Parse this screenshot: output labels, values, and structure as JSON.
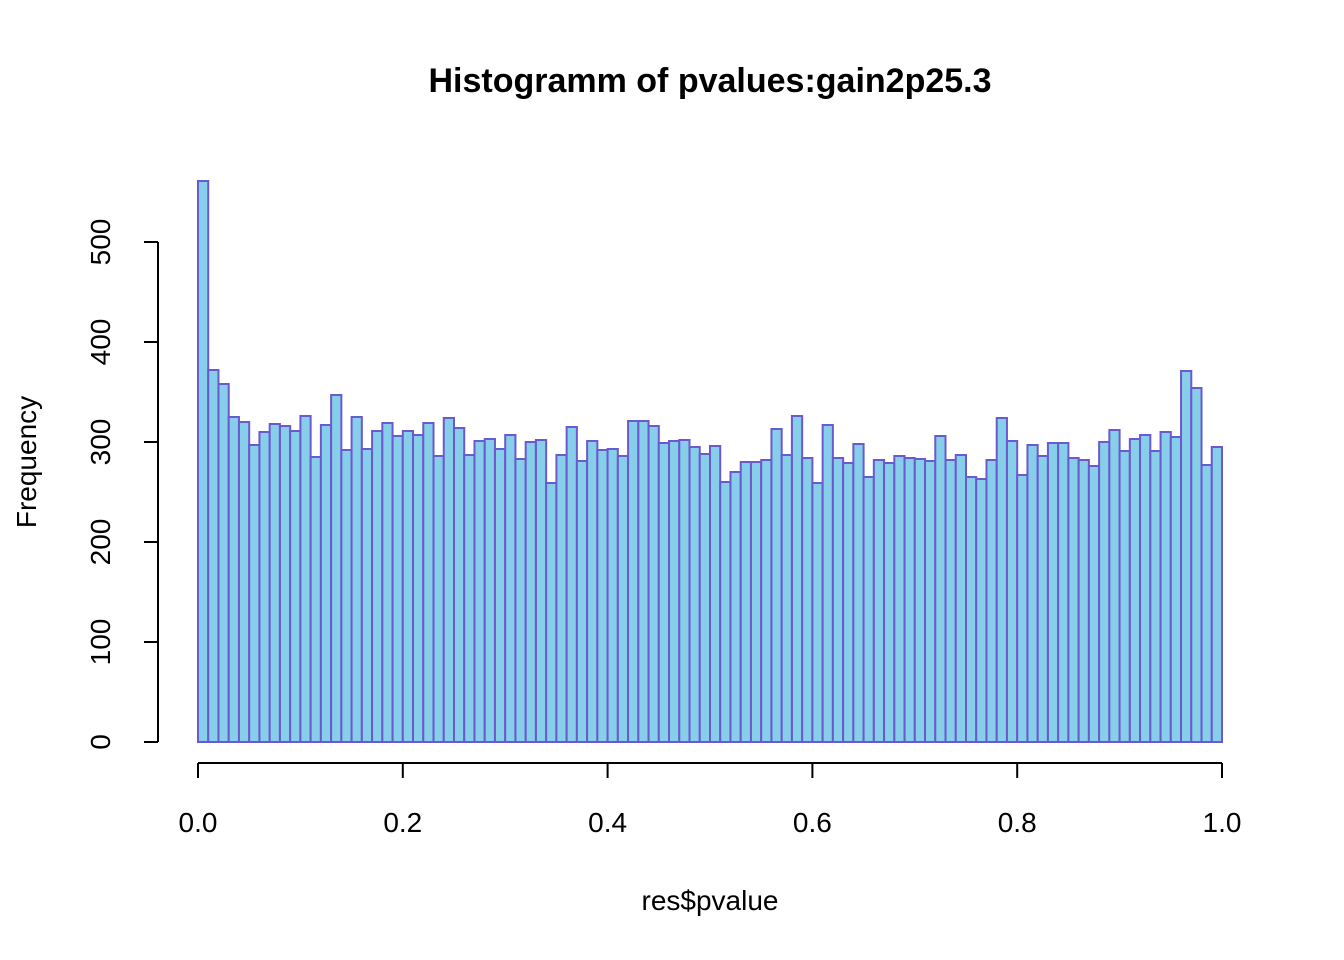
{
  "chart_data": {
    "type": "bar",
    "title": "Histogramm of pvalues:gain2p25.3",
    "xlabel": "res$pvalue",
    "ylabel": "Frequency",
    "xlim": [
      0,
      1
    ],
    "ylim": [
      0,
      560
    ],
    "bin_width": 0.01,
    "x_ticks": [
      0,
      0.2,
      0.4,
      0.6,
      0.8,
      1
    ],
    "x_tick_labels": [
      "0.0",
      "0.2",
      "0.4",
      "0.6",
      "0.8",
      "1.0"
    ],
    "y_ticks": [
      0,
      100,
      200,
      300,
      400,
      500
    ],
    "y_tick_labels": [
      "0",
      "100",
      "200",
      "300",
      "400",
      "500"
    ],
    "grid": false,
    "colors": {
      "fill": "#87CEEB",
      "border": "#6A5ACD"
    },
    "values": [
      561,
      372,
      358,
      325,
      320,
      297,
      310,
      318,
      316,
      311,
      326,
      285,
      317,
      347,
      292,
      325,
      293,
      311,
      319,
      306,
      311,
      307,
      319,
      286,
      324,
      314,
      287,
      301,
      303,
      293,
      307,
      283,
      300,
      302,
      259,
      287,
      315,
      281,
      301,
      292,
      293,
      286,
      321,
      321,
      316,
      299,
      301,
      302,
      295,
      288,
      296,
      260,
      270,
      280,
      280,
      282,
      313,
      287,
      326,
      284,
      259,
      317,
      284,
      279,
      298,
      265,
      282,
      279,
      286,
      284,
      283,
      281,
      306,
      282,
      287,
      265,
      263,
      282,
      324,
      301,
      267,
      297,
      286,
      299,
      299,
      284,
      282,
      276,
      300,
      312,
      291,
      303,
      307,
      291,
      310,
      305,
      371,
      354,
      277,
      295
    ]
  }
}
